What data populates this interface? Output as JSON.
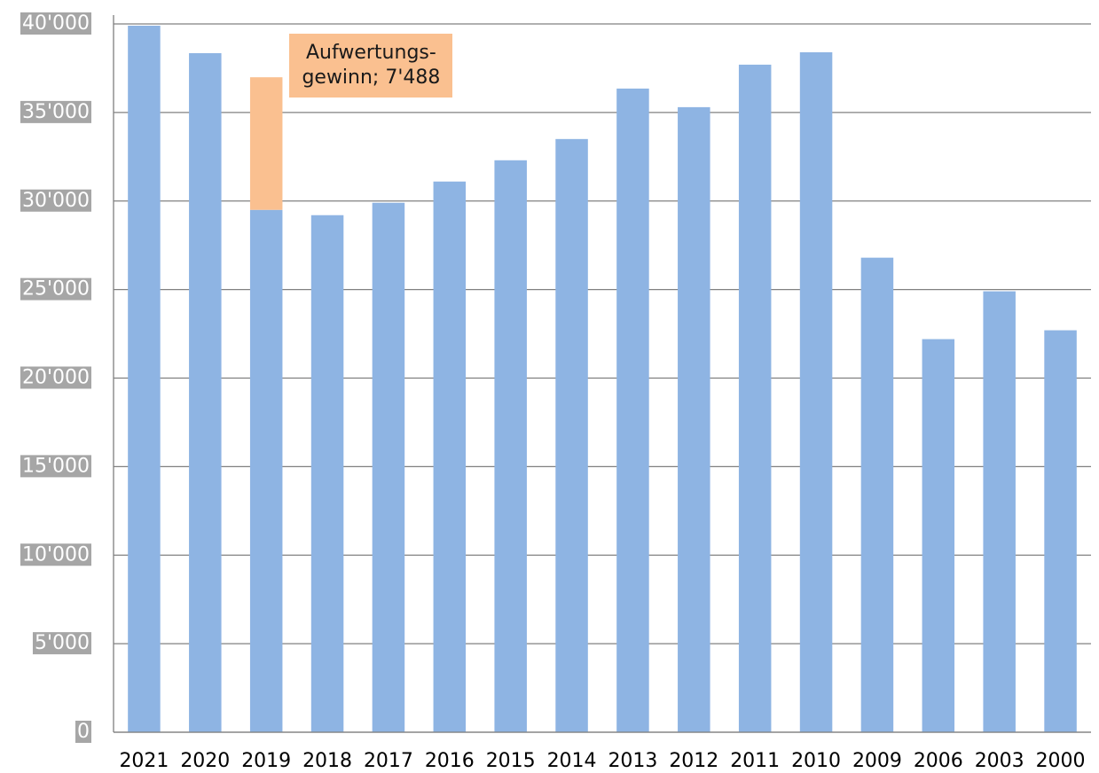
{
  "chart_data": {
    "type": "bar",
    "stacked": true,
    "categories": [
      "2021",
      "2020",
      "2019",
      "2018",
      "2017",
      "2016",
      "2015",
      "2014",
      "2013",
      "2012",
      "2011",
      "2010",
      "2009",
      "2006",
      "2003",
      "2000"
    ],
    "series": [
      {
        "color": "#8eb4e3",
        "values": [
          39900,
          38350,
          29500,
          29200,
          29900,
          31100,
          32300,
          33500,
          36350,
          35300,
          37700,
          38400,
          26800,
          22200,
          24900,
          22700
        ]
      },
      {
        "color": "#fac090",
        "values": [
          null,
          null,
          7488,
          null,
          null,
          null,
          null,
          null,
          null,
          null,
          null,
          null,
          null,
          null,
          null,
          null
        ],
        "value_labels": [
          null,
          null,
          "Aufwertungs-\ngewinn; 7'488",
          null,
          null,
          null,
          null,
          null,
          null,
          null,
          null,
          null,
          null,
          null,
          null,
          null
        ]
      }
    ],
    "ylim": [
      0,
      40000
    ],
    "yticks": [
      0,
      {
        "value": 5000,
        "label": "5'000"
      },
      {
        "value": 10000,
        "label": "10'000"
      },
      {
        "value": 15000,
        "label": "15'000"
      },
      {
        "value": 20000,
        "label": "20'000"
      },
      {
        "value": 25000,
        "label": "25'000"
      },
      {
        "value": 30000,
        "label": "30'000"
      },
      {
        "value": 35000,
        "label": "35'000"
      },
      {
        "value": 40000,
        "label": "40'000"
      }
    ],
    "grid": true
  }
}
